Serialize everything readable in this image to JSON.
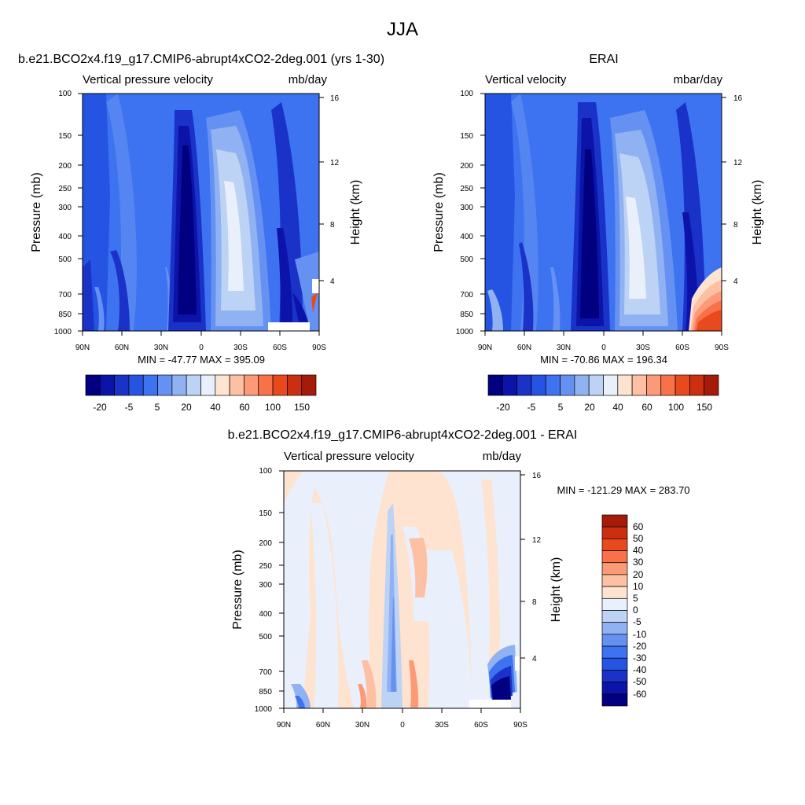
{
  "figure": {
    "title": "JJA"
  },
  "colors": {
    "panel_a": [
      "#000080",
      "#0c13a8",
      "#1a32c8",
      "#2554e3",
      "#3d72f0",
      "#6592f2",
      "#91b2f2",
      "#bdd3f5",
      "#eaf0fb",
      "#fde3d0",
      "#fdc0a2",
      "#fc9a78",
      "#f87149",
      "#e94a1d",
      "#cc2f0f",
      "#a51a08",
      "#7a0703"
    ],
    "panel_b": [
      "#000080",
      "#0c13a8",
      "#1a32c8",
      "#2554e3",
      "#3d72f0",
      "#6592f2",
      "#91b2f2",
      "#bdd3f5",
      "#eaf0fb",
      "#fde3d0",
      "#fdc0a2",
      "#fc9a78",
      "#f87149",
      "#e94a1d",
      "#cc2f0f",
      "#a51a08",
      "#7a0703"
    ],
    "panel_c": [
      "#000080",
      "#0c13a8",
      "#1a32c8",
      "#2554e3",
      "#3d72f0",
      "#6592f2",
      "#91b2f2",
      "#bdd3f5",
      "#eaf0fb",
      "#fde3d0",
      "#fdc0a2",
      "#fc9a78",
      "#f87149",
      "#e94a1d",
      "#cc2f0f",
      "#a51a08",
      "#7a0703"
    ]
  },
  "chart_data": [
    {
      "type": "heatmap",
      "title": "b.e21.BCO2x4.f19_g17.CMIP6-abrupt4xCO2-2deg.001 (yrs 1-30)",
      "left_label": "Vertical pressure velocity",
      "right_label": "mb/day",
      "ylabel": "Pressure (mb)",
      "ylabel_right": "Height (km)",
      "x_ticks": [
        "90N",
        "60N",
        "30N",
        "0",
        "30S",
        "60S",
        "90S"
      ],
      "y_ticks": [
        "100",
        "150",
        "200",
        "250",
        "300",
        "400",
        "500",
        "700",
        "850",
        "1000"
      ],
      "y_right_ticks": [
        "4",
        "8",
        "12",
        "16"
      ],
      "stats": "MIN = -47.77  MAX = 395.09",
      "colorbar_labels": [
        "-20",
        "-5",
        "5",
        "20",
        "40",
        "60",
        "100",
        "150"
      ],
      "colorbar_bins": 16
    },
    {
      "type": "heatmap",
      "title": "ERAI",
      "left_label": "Vertical velocity",
      "right_label": "mbar/day",
      "ylabel": "Pressure (mb)",
      "ylabel_right": "Height (km)",
      "x_ticks": [
        "90N",
        "60N",
        "30N",
        "0",
        "30S",
        "60S",
        "90S"
      ],
      "y_ticks": [
        "100",
        "150",
        "200",
        "250",
        "300",
        "400",
        "500",
        "700",
        "850",
        "1000"
      ],
      "y_right_ticks": [
        "4",
        "8",
        "12",
        "16"
      ],
      "stats": "MIN = -70.86  MAX = 196.34",
      "colorbar_labels": [
        "-20",
        "-5",
        "5",
        "20",
        "40",
        "60",
        "100",
        "150"
      ],
      "colorbar_bins": 16
    },
    {
      "type": "heatmap",
      "title": "b.e21.BCO2x4.f19_g17.CMIP6-abrupt4xCO2-2deg.001 - ERAI",
      "left_label": "Vertical pressure velocity",
      "right_label": "mb/day",
      "ylabel": "Pressure (mb)",
      "ylabel_right": "Height (km)",
      "x_ticks": [
        "90N",
        "60N",
        "30N",
        "0",
        "30S",
        "60S",
        "90S"
      ],
      "y_ticks": [
        "100",
        "150",
        "200",
        "250",
        "300",
        "400",
        "500",
        "700",
        "850",
        "1000"
      ],
      "y_right_ticks": [
        "4",
        "8",
        "12",
        "16"
      ],
      "stats": "MIN = -121.29  MAX = 283.70",
      "colorbar_labels": [
        "60",
        "50",
        "40",
        "30",
        "20",
        "10",
        "5",
        "0",
        "-5",
        "-10",
        "-20",
        "-30",
        "-40",
        "-50",
        "-60"
      ],
      "colorbar_bins": 16
    }
  ]
}
